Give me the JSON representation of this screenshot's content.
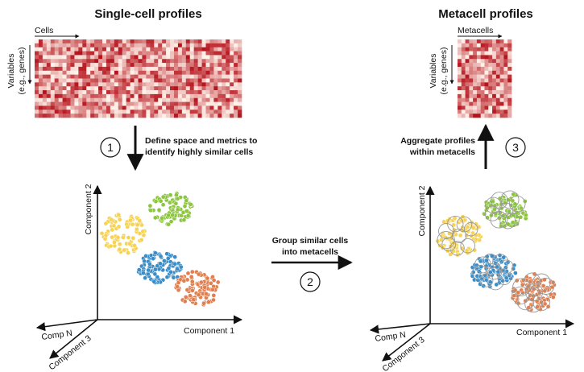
{
  "left_panel": {
    "title": "Single-cell profiles",
    "cols_label": "Cells",
    "rows_label_line1": "Variables",
    "rows_label_line2": "(e.g., genes)"
  },
  "right_panel": {
    "title": "Metacell profiles",
    "cols_label": "Metacells",
    "rows_label_line1": "Variables",
    "rows_label_line2": "(e.g., genes)"
  },
  "steps": [
    {
      "number": "1",
      "line1": "Define space and metrics to",
      "line2": "identify highly similar cells"
    },
    {
      "number": "2",
      "line1": "Group similar cells",
      "line2": "into metacells"
    },
    {
      "number": "3",
      "line1": "Aggregate profiles",
      "line2": "within metacells"
    }
  ],
  "axes": {
    "x": "Component 1",
    "y": "Component 2",
    "z": "Component 3",
    "n": "Comp N"
  },
  "colors": {
    "green": "#8cc63f",
    "yellow": "#f7d354",
    "blue": "#3b8dc8",
    "orange": "#e07f4f",
    "heatmap_low": "#fff2ea",
    "heatmap_high": "#b5121b"
  }
}
